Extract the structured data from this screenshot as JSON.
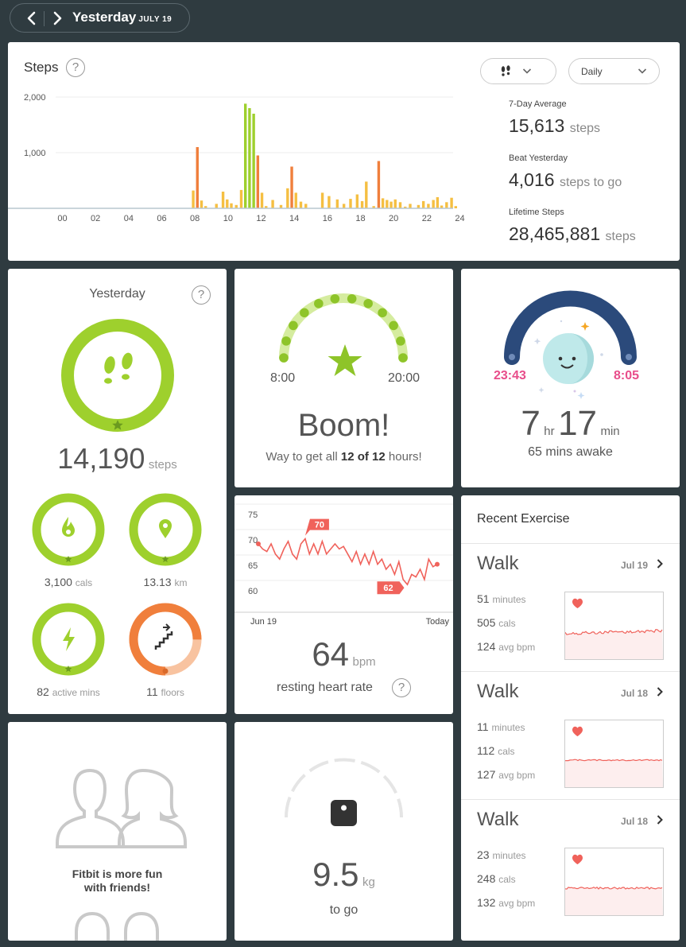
{
  "header": {
    "title": "Yesterday",
    "date": "JULY 19"
  },
  "steps": {
    "title": "Steps",
    "help": "?",
    "dropdown": "Daily",
    "stats": [
      {
        "label": "7-Day Average",
        "value": "15,613",
        "unit": "steps"
      },
      {
        "label": "Beat Yesterday",
        "value": "4,016",
        "unit": "steps to go"
      },
      {
        "label": "Lifetime Steps",
        "value": "28,465,881",
        "unit": "steps"
      }
    ],
    "chart_data": {
      "type": "bar",
      "ylim": [
        0,
        2000
      ],
      "y_ticks": [
        "2,000",
        "1,000"
      ],
      "x_ticks": [
        "00",
        "02",
        "04",
        "06",
        "08",
        "10",
        "12",
        "14",
        "16",
        "18",
        "20",
        "22",
        "24"
      ],
      "colors": {
        "green": "#9ed02d",
        "orange": "#f07f3c",
        "yellow": "#f5bf42"
      },
      "bars": [
        {
          "hour": 7.9,
          "value": 320,
          "color": "yellow"
        },
        {
          "hour": 8.15,
          "value": 1100,
          "color": "orange"
        },
        {
          "hour": 8.4,
          "value": 140,
          "color": "yellow"
        },
        {
          "hour": 8.65,
          "value": 40,
          "color": "yellow"
        },
        {
          "hour": 9.3,
          "value": 80,
          "color": "yellow"
        },
        {
          "hour": 9.7,
          "value": 300,
          "color": "yellow"
        },
        {
          "hour": 9.95,
          "value": 160,
          "color": "yellow"
        },
        {
          "hour": 10.2,
          "value": 90,
          "color": "yellow"
        },
        {
          "hour": 10.5,
          "value": 60,
          "color": "yellow"
        },
        {
          "hour": 10.8,
          "value": 330,
          "color": "yellow"
        },
        {
          "hour": 11.05,
          "value": 1880,
          "color": "green"
        },
        {
          "hour": 11.3,
          "value": 1800,
          "color": "green"
        },
        {
          "hour": 11.55,
          "value": 1700,
          "color": "green"
        },
        {
          "hour": 11.8,
          "value": 950,
          "color": "orange"
        },
        {
          "hour": 12.05,
          "value": 280,
          "color": "yellow"
        },
        {
          "hour": 12.3,
          "value": 40,
          "color": "yellow"
        },
        {
          "hour": 12.7,
          "value": 150,
          "color": "yellow"
        },
        {
          "hour": 13.2,
          "value": 60,
          "color": "yellow"
        },
        {
          "hour": 13.6,
          "value": 360,
          "color": "yellow"
        },
        {
          "hour": 13.85,
          "value": 750,
          "color": "orange"
        },
        {
          "hour": 14.1,
          "value": 280,
          "color": "yellow"
        },
        {
          "hour": 14.4,
          "value": 120,
          "color": "yellow"
        },
        {
          "hour": 14.7,
          "value": 80,
          "color": "yellow"
        },
        {
          "hour": 15.7,
          "value": 280,
          "color": "yellow"
        },
        {
          "hour": 16.1,
          "value": 220,
          "color": "yellow"
        },
        {
          "hour": 16.6,
          "value": 160,
          "color": "yellow"
        },
        {
          "hour": 17.0,
          "value": 80,
          "color": "yellow"
        },
        {
          "hour": 17.4,
          "value": 170,
          "color": "yellow"
        },
        {
          "hour": 17.8,
          "value": 250,
          "color": "yellow"
        },
        {
          "hour": 18.1,
          "value": 130,
          "color": "yellow"
        },
        {
          "hour": 18.35,
          "value": 480,
          "color": "yellow"
        },
        {
          "hour": 18.8,
          "value": 40,
          "color": "yellow"
        },
        {
          "hour": 19.1,
          "value": 850,
          "color": "orange"
        },
        {
          "hour": 19.35,
          "value": 180,
          "color": "yellow"
        },
        {
          "hour": 19.6,
          "value": 150,
          "color": "yellow"
        },
        {
          "hour": 19.85,
          "value": 120,
          "color": "yellow"
        },
        {
          "hour": 20.1,
          "value": 160,
          "color": "yellow"
        },
        {
          "hour": 20.4,
          "value": 110,
          "color": "yellow"
        },
        {
          "hour": 20.7,
          "value": 30,
          "color": "yellow"
        },
        {
          "hour": 21.0,
          "value": 80,
          "color": "yellow"
        },
        {
          "hour": 21.5,
          "value": 60,
          "color": "yellow"
        },
        {
          "hour": 21.8,
          "value": 130,
          "color": "yellow"
        },
        {
          "hour": 22.1,
          "value": 80,
          "color": "yellow"
        },
        {
          "hour": 22.4,
          "value": 150,
          "color": "yellow"
        },
        {
          "hour": 22.65,
          "value": 200,
          "color": "yellow"
        },
        {
          "hour": 22.9,
          "value": 50,
          "color": "yellow"
        },
        {
          "hour": 23.2,
          "value": 110,
          "color": "yellow"
        },
        {
          "hour": 23.5,
          "value": 190,
          "color": "yellow"
        },
        {
          "hour": 23.75,
          "value": 40,
          "color": "yellow"
        }
      ]
    }
  },
  "daily": {
    "title": "Yesterday",
    "help": "?",
    "steps_value": "14,190",
    "steps_unit": "steps",
    "cals_value": "3,100",
    "cals_unit": "cals",
    "km_value": "13.13",
    "km_unit": "km",
    "active_value": "82",
    "active_unit": "active mins",
    "floors_value": "11",
    "floors_unit": "floors",
    "floors_progress": 0.75
  },
  "hourly": {
    "start": "8:00",
    "end": "20:00",
    "headline": "Boom!",
    "message_prefix": "Way to get all ",
    "message_bold": "12 of 12",
    "message_suffix": " hours!",
    "hours_met": 12,
    "hours_goal": 12
  },
  "sleep": {
    "bedtime": "23:43",
    "wake": "8:05",
    "hours": "7",
    "hr_unit": "hr",
    "minutes": "17",
    "min_unit": "min",
    "awake": "65 mins awake"
  },
  "heart": {
    "chart_data": {
      "type": "line",
      "y_ticks": [
        "75",
        "70",
        "65",
        "60"
      ],
      "ylim": [
        57.5,
        77.5
      ],
      "x_start": "Jun 19",
      "x_end": "Today",
      "values": [
        70,
        69,
        68.5,
        70,
        68,
        67,
        69,
        70.5,
        68,
        67,
        70,
        71,
        68,
        70,
        68,
        70.5,
        68,
        69,
        70,
        69,
        69.5,
        68,
        66.5,
        68.5,
        66,
        68,
        66,
        68.5,
        66,
        67,
        65,
        66,
        64,
        66.5,
        63,
        62,
        64,
        63.5,
        65,
        63,
        67,
        65.5,
        66
      ],
      "marker_high": "70",
      "marker_low": "62",
      "color": "#f0625b"
    },
    "value": "64",
    "unit": "bpm",
    "label": "resting heart rate",
    "help": "?"
  },
  "exercise": {
    "title": "Recent Exercise",
    "items": [
      {
        "name": "Walk",
        "date": "Jul 19",
        "minutes": "51",
        "minutes_unit": "minutes",
        "cals": "505",
        "cals_unit": "cals",
        "bpm": "124",
        "bpm_unit": "avg bpm"
      },
      {
        "name": "Walk",
        "date": "Jul 18",
        "minutes": "11",
        "minutes_unit": "minutes",
        "cals": "112",
        "cals_unit": "cals",
        "bpm": "127",
        "bpm_unit": "avg bpm"
      },
      {
        "name": "Walk",
        "date": "Jul 18",
        "minutes": "23",
        "minutes_unit": "minutes",
        "cals": "248",
        "cals_unit": "cals",
        "bpm": "132",
        "bpm_unit": "avg bpm"
      }
    ]
  },
  "friends": {
    "line1": "Fitbit is more fun",
    "line2": "with friends!"
  },
  "weight": {
    "value": "9.5",
    "unit": "kg",
    "label": "to go"
  }
}
